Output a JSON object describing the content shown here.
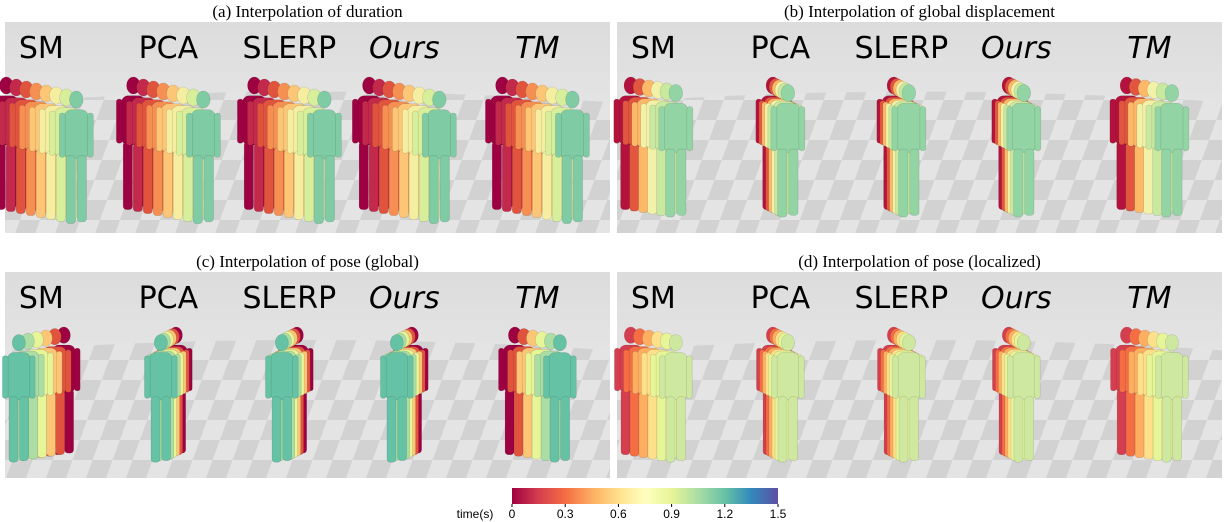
{
  "panels": [
    {
      "title": "(a) Interpolation of duration",
      "methods": [
        "SM",
        "PCA",
        "SLERP",
        "Ours",
        "TM"
      ]
    },
    {
      "title": "(b) Interpolation of global displacement",
      "methods": [
        "SM",
        "PCA",
        "SLERP",
        "Ours",
        "TM"
      ]
    },
    {
      "title": "(c) Interpolation of pose (global)",
      "methods": [
        "SM",
        "PCA",
        "SLERP",
        "Ours",
        "TM"
      ]
    },
    {
      "title": "(d) Interpolation of pose (localized)",
      "methods": [
        "SM",
        "PCA",
        "SLERP",
        "Ours",
        "TM"
      ]
    }
  ],
  "colorbar": {
    "label": "time(s)",
    "lim": [
      0,
      1.5
    ],
    "ticks": [
      0,
      0.3,
      0.6,
      0.9,
      1.2,
      1.5
    ]
  }
}
